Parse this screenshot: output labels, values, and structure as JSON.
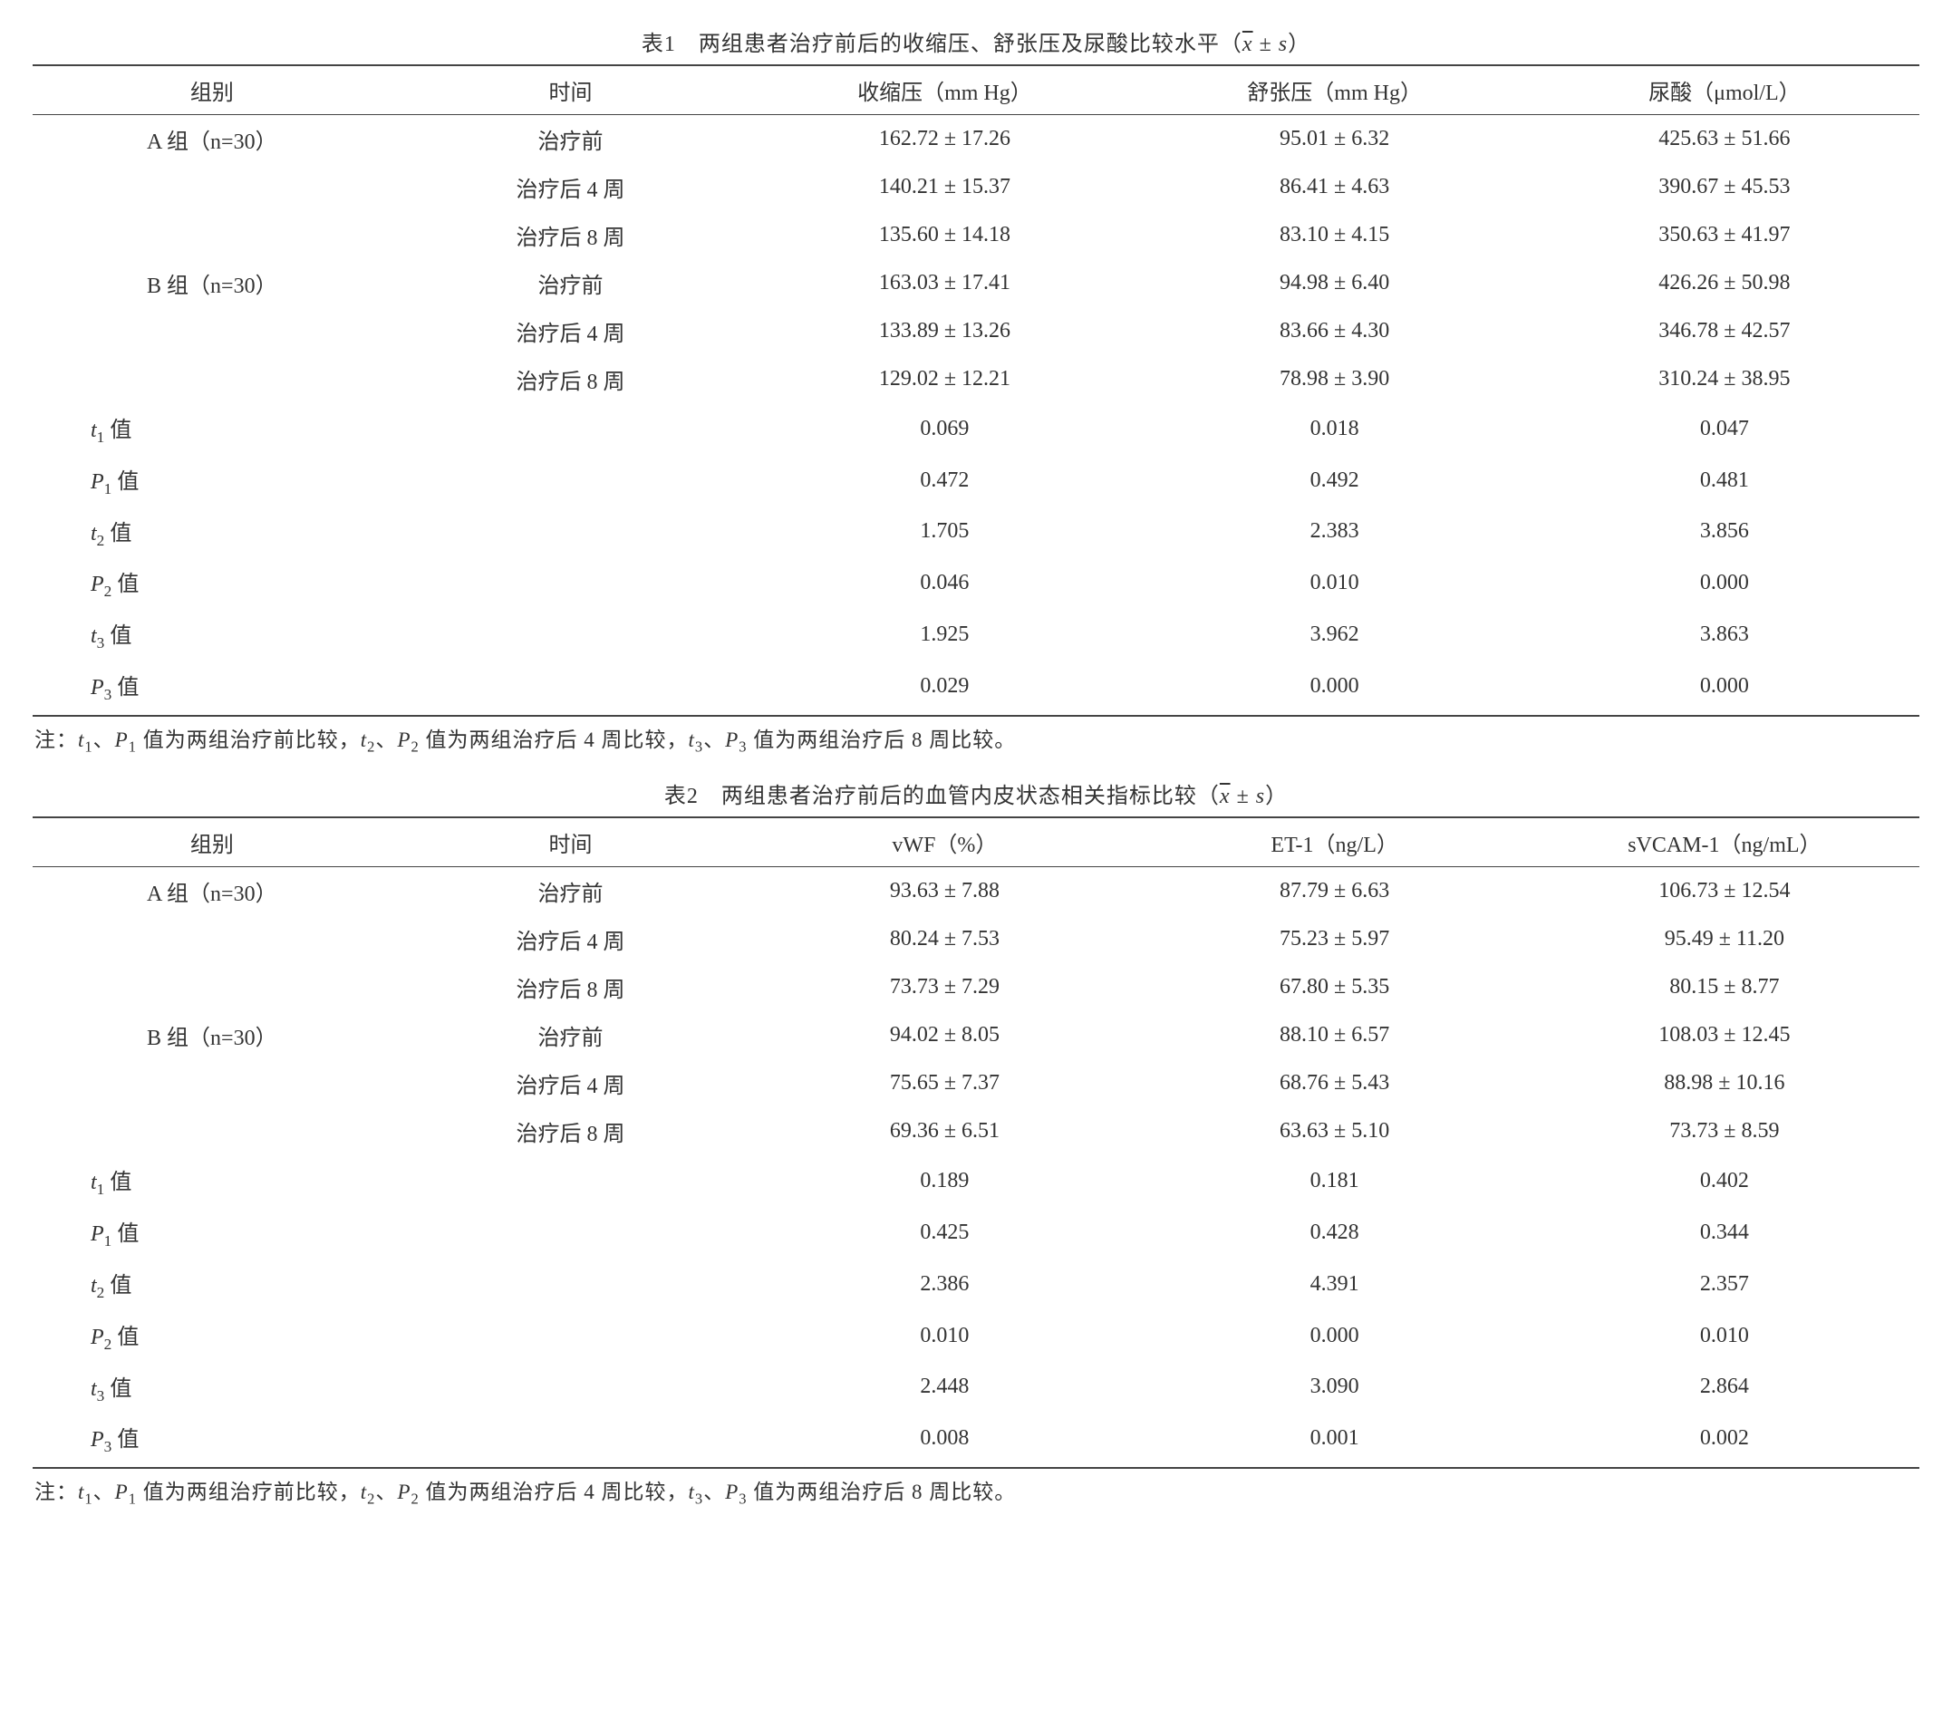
{
  "tables": [
    {
      "title_prefix": "表1　两组患者治疗前后的收缩压、舒张压及尿酸比较水平（",
      "title_suffix": "）",
      "columns": [
        "组别",
        "时间",
        "收缩压（mm Hg）",
        "舒张压（mm Hg）",
        "尿酸（μmol/L）"
      ],
      "groups": [
        {
          "label": "A 组（n=30）",
          "rows": [
            {
              "time": "治疗前",
              "v": [
                "162.72 ± 17.26",
                "95.01 ± 6.32",
                "425.63 ± 51.66"
              ]
            },
            {
              "time": "治疗后 4 周",
              "v": [
                "140.21 ± 15.37",
                "86.41 ± 4.63",
                "390.67 ± 45.53"
              ]
            },
            {
              "time": "治疗后 8 周",
              "v": [
                "135.60 ± 14.18",
                "83.10 ± 4.15",
                "350.63 ± 41.97"
              ]
            }
          ]
        },
        {
          "label": "B 组（n=30）",
          "rows": [
            {
              "time": "治疗前",
              "v": [
                "163.03 ± 17.41",
                "94.98 ± 6.40",
                "426.26 ± 50.98"
              ]
            },
            {
              "time": "治疗后 4 周",
              "v": [
                "133.89 ± 13.26",
                "83.66 ± 4.30",
                "346.78 ± 42.57"
              ]
            },
            {
              "time": "治疗后 8 周",
              "v": [
                "129.02 ± 12.21",
                "78.98 ± 3.90",
                "310.24 ± 38.95"
              ]
            }
          ]
        }
      ],
      "stats": [
        {
          "sym": "t",
          "sub": "1",
          "suffix": " 值",
          "v": [
            "0.069",
            "0.018",
            "0.047"
          ]
        },
        {
          "sym": "P",
          "sub": "1",
          "suffix": " 值",
          "v": [
            "0.472",
            "0.492",
            "0.481"
          ]
        },
        {
          "sym": "t",
          "sub": "2",
          "suffix": " 值",
          "v": [
            "1.705",
            "2.383",
            "3.856"
          ]
        },
        {
          "sym": "P",
          "sub": "2",
          "suffix": " 值",
          "v": [
            "0.046",
            "0.010",
            "0.000"
          ]
        },
        {
          "sym": "t",
          "sub": "3",
          "suffix": " 值",
          "v": [
            "1.925",
            "3.962",
            "3.863"
          ]
        },
        {
          "sym": "P",
          "sub": "3",
          "suffix": " 值",
          "v": [
            "0.029",
            "0.000",
            "0.000"
          ]
        }
      ],
      "note_parts": {
        "prefix": "注：",
        "seg1a": "t",
        "seg1b": "1",
        "seg1c": "、",
        "seg1d": "P",
        "seg1e": "1",
        "seg1f": " 值为两组治疗前比较，",
        "seg2a": "t",
        "seg2b": "2",
        "seg2c": "、",
        "seg2d": "P",
        "seg2e": "2",
        "seg2f": " 值为两组治疗后 4 周比较，",
        "seg3a": "t",
        "seg3b": "3",
        "seg3c": "、",
        "seg3d": "P",
        "seg3e": "3",
        "seg3f": " 值为两组治疗后 8 周比较。"
      }
    },
    {
      "title_prefix": "表2　两组患者治疗前后的血管内皮状态相关指标比较（",
      "title_suffix": "）",
      "columns": [
        "组别",
        "时间",
        "vWF（%）",
        "ET-1（ng/L）",
        "sVCAM-1（ng/mL）"
      ],
      "groups": [
        {
          "label": "A 组（n=30）",
          "rows": [
            {
              "time": "治疗前",
              "v": [
                "93.63 ± 7.88",
                "87.79 ± 6.63",
                "106.73 ± 12.54"
              ]
            },
            {
              "time": "治疗后 4 周",
              "v": [
                "80.24 ± 7.53",
                "75.23 ± 5.97",
                "95.49 ± 11.20"
              ]
            },
            {
              "time": "治疗后 8 周",
              "v": [
                "73.73 ± 7.29",
                "67.80 ± 5.35",
                "80.15 ± 8.77"
              ]
            }
          ]
        },
        {
          "label": "B 组（n=30）",
          "rows": [
            {
              "time": "治疗前",
              "v": [
                "94.02 ± 8.05",
                "88.10 ± 6.57",
                "108.03 ± 12.45"
              ]
            },
            {
              "time": "治疗后 4 周",
              "v": [
                "75.65 ± 7.37",
                "68.76 ± 5.43",
                "88.98 ± 10.16"
              ]
            },
            {
              "time": "治疗后 8 周",
              "v": [
                "69.36 ± 6.51",
                "63.63 ± 5.10",
                "73.73 ± 8.59"
              ]
            }
          ]
        }
      ],
      "stats": [
        {
          "sym": "t",
          "sub": "1",
          "suffix": " 值",
          "v": [
            "0.189",
            "0.181",
            "0.402"
          ]
        },
        {
          "sym": "P",
          "sub": "1",
          "suffix": " 值",
          "v": [
            "0.425",
            "0.428",
            "0.344"
          ]
        },
        {
          "sym": "t",
          "sub": "2",
          "suffix": " 值",
          "v": [
            "2.386",
            "4.391",
            "2.357"
          ]
        },
        {
          "sym": "P",
          "sub": "2",
          "suffix": " 值",
          "v": [
            "0.010",
            "0.000",
            "0.010"
          ]
        },
        {
          "sym": "t",
          "sub": "3",
          "suffix": " 值",
          "v": [
            "2.448",
            "3.090",
            "2.864"
          ]
        },
        {
          "sym": "P",
          "sub": "3",
          "suffix": " 值",
          "v": [
            "0.008",
            "0.001",
            "0.002"
          ]
        }
      ],
      "note_parts": {
        "prefix": "注：",
        "seg1a": "t",
        "seg1b": "1",
        "seg1c": "、",
        "seg1d": "P",
        "seg1e": "1",
        "seg1f": " 值为两组治疗前比较，",
        "seg2a": "t",
        "seg2b": "2",
        "seg2c": "、",
        "seg2d": "P",
        "seg2e": "2",
        "seg2f": " 值为两组治疗后 4 周比较，",
        "seg3a": "t",
        "seg3b": "3",
        "seg3c": "、",
        "seg3d": "P",
        "seg3e": "3",
        "seg3f": " 值为两组治疗后 8 周比较。"
      }
    }
  ],
  "xbar": "x",
  "pm": " ± ",
  "s": "s"
}
